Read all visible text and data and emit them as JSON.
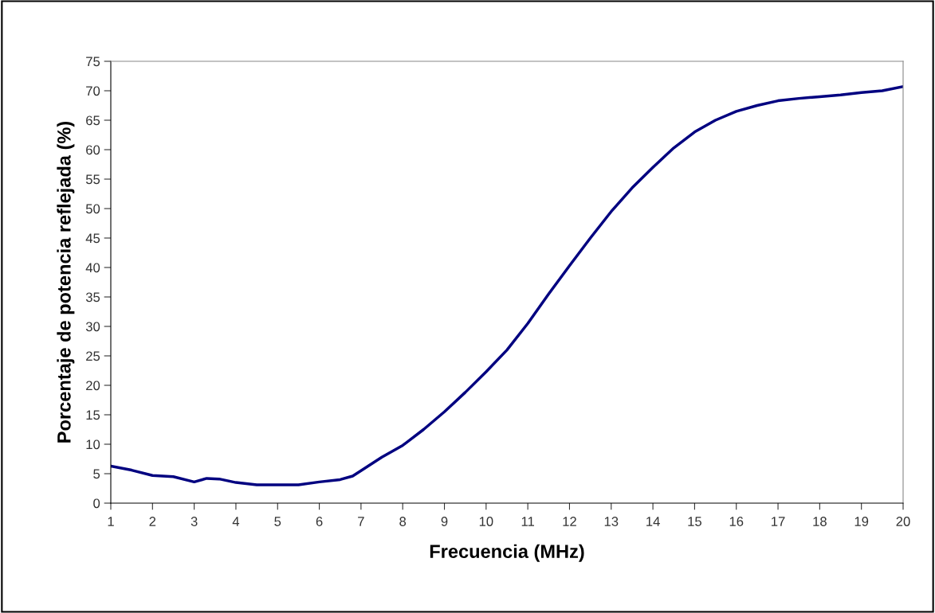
{
  "chart_data": {
    "type": "line",
    "xlabel": "Frecuencia (MHz)",
    "ylabel": "Porcentaje de potencia reflejada (%)",
    "xlim": [
      1,
      20
    ],
    "xticks": [
      1,
      2,
      3,
      4,
      5,
      6,
      7,
      8,
      9,
      10,
      11,
      12,
      13,
      14,
      15,
      16,
      17,
      18,
      19,
      20
    ],
    "ylim": [
      0,
      75
    ],
    "yticks": [
      0,
      5,
      10,
      15,
      20,
      25,
      30,
      35,
      40,
      45,
      50,
      55,
      60,
      65,
      70,
      75
    ],
    "grid": false,
    "legend": false,
    "marker": "none",
    "line_style": "solid",
    "series": [
      {
        "color": "#000080",
        "x": [
          1,
          1.5,
          2,
          2.5,
          3,
          3.3,
          3.6,
          4,
          4.5,
          5,
          5.5,
          6,
          6.5,
          6.8,
          7,
          7.5,
          8,
          8.5,
          9,
          9.5,
          10,
          10.5,
          11,
          11.5,
          12,
          12.5,
          13,
          13.5,
          14,
          14.5,
          15,
          15.5,
          16,
          16.5,
          17,
          17.5,
          18,
          18.5,
          19,
          19.5,
          20
        ],
        "values": [
          6.3,
          5.6,
          4.7,
          4.5,
          3.6,
          4.2,
          4.1,
          3.5,
          3.1,
          3.1,
          3.1,
          3.6,
          4.0,
          4.6,
          5.5,
          7.8,
          9.8,
          12.5,
          15.5,
          18.8,
          22.3,
          26,
          30.5,
          35.5,
          40.3,
          45,
          49.5,
          53.5,
          57,
          60.3,
          63,
          65,
          66.5,
          67.5,
          68.3,
          68.7,
          69,
          69.3,
          69.7,
          70,
          70.7
        ]
      }
    ]
  }
}
